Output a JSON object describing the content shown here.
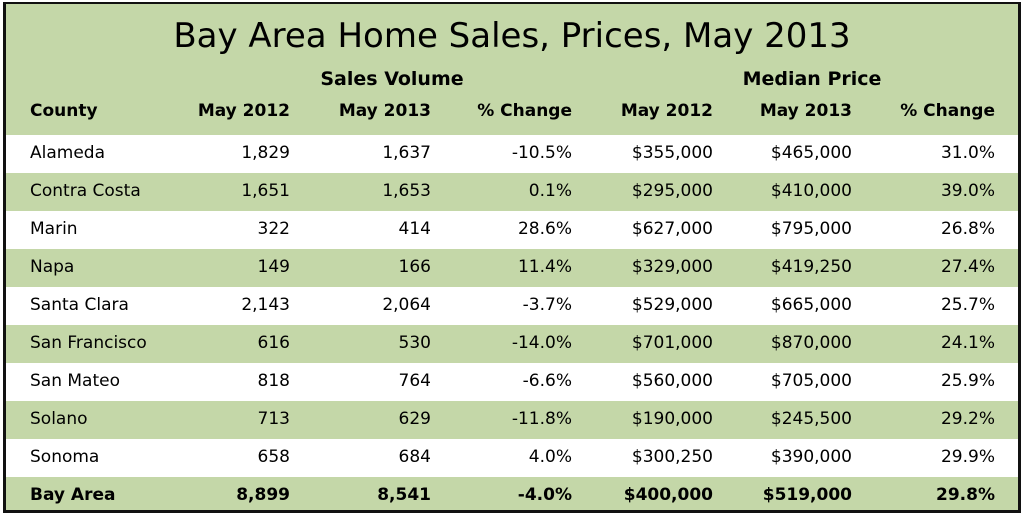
{
  "title": "Bay Area Home Sales, Prices, May 2013",
  "groups": {
    "sales": "Sales Volume",
    "price": "Median Price"
  },
  "columns": [
    "County",
    "May 2012",
    "May 2013",
    "% Change",
    "May 2012",
    "May 2013",
    "% Change"
  ],
  "rows": [
    [
      "Alameda",
      "1,829",
      "1,637",
      "-10.5%",
      "$355,000",
      "$465,000",
      "31.0%"
    ],
    [
      "Contra Costa",
      "1,651",
      "1,653",
      "0.1%",
      "$295,000",
      "$410,000",
      "39.0%"
    ],
    [
      "Marin",
      "322",
      "414",
      "28.6%",
      "$627,000",
      "$795,000",
      "26.8%"
    ],
    [
      "Napa",
      "149",
      "166",
      "11.4%",
      "$329,000",
      "$419,250",
      "27.4%"
    ],
    [
      "Santa Clara",
      "2,143",
      "2,064",
      "-3.7%",
      "$529,000",
      "$665,000",
      "25.7%"
    ],
    [
      "San Francisco",
      "616",
      "530",
      "-14.0%",
      "$701,000",
      "$870,000",
      "24.1%"
    ],
    [
      "San Mateo",
      "818",
      "764",
      "-6.6%",
      "$560,000",
      "$705,000",
      "25.9%"
    ],
    [
      "Solano",
      "713",
      "629",
      "-11.8%",
      "$190,000",
      "$245,500",
      "29.2%"
    ],
    [
      "Sonoma",
      "658",
      "684",
      "4.0%",
      "$300,250",
      "$390,000",
      "29.9%"
    ],
    [
      "Bay Area",
      "8,899",
      "8,541",
      "-4.0%",
      "$400,000",
      "$519,000",
      "29.8%"
    ]
  ],
  "colors": {
    "band": "#c4d7a8",
    "alt": "#ffffff",
    "border": "#111111"
  }
}
